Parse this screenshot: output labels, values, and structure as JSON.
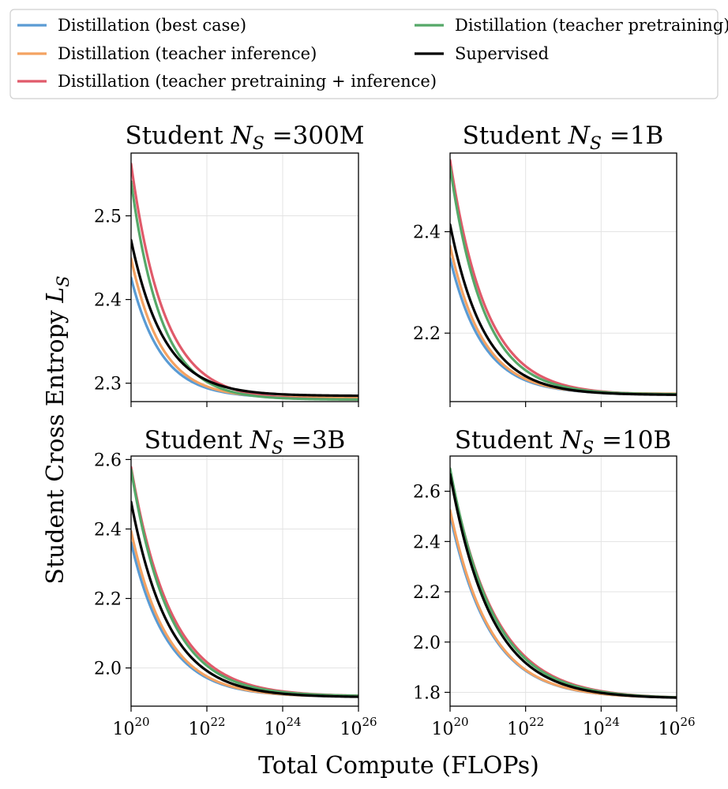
{
  "chart_data": {
    "type": "line",
    "xlabel": "Total Compute (FLOPs)",
    "ylabel": "Student Cross Entropy L_S",
    "ylabel_main": "Student Cross Entropy ",
    "ylabel_symbol": "L",
    "ylabel_sub": "S",
    "x_scale": "log10",
    "xlim": [
      1e+20,
      1e+26
    ],
    "x_ticks": [
      {
        "value": 20,
        "base": "10",
        "exp": "20"
      },
      {
        "value": 22,
        "base": "10",
        "exp": "22"
      },
      {
        "value": 24,
        "base": "10",
        "exp": "24"
      },
      {
        "value": 26,
        "base": "10",
        "exp": "26"
      }
    ],
    "grid": true,
    "legend": {
      "placement": "top",
      "entries": [
        {
          "label": "Distillation (best case)",
          "color": "#5a9bd4"
        },
        {
          "label": "Distillation (teacher inference)",
          "color": "#f4a261"
        },
        {
          "label": "Distillation (teacher pretraining + inference)",
          "color": "#e05a6a"
        },
        {
          "label": "Distillation (teacher pretraining)",
          "color": "#55a868"
        },
        {
          "label": "Supervised",
          "color": "#000000"
        }
      ]
    },
    "panels": [
      {
        "title_prefix": "Student ",
        "title_symbol": "N",
        "title_sub": "S",
        "title_suffix": " =300M",
        "ylim": [
          2.278,
          2.575
        ],
        "y_ticks": [
          "2.3",
          "2.4",
          "2.5"
        ],
        "asymptote": 2.2835,
        "series": [
          {
            "name": "Distillation (best case)",
            "start": 2.426,
            "end": 2.2825,
            "decay": 1.25
          },
          {
            "name": "Distillation (teacher inference)",
            "start": 2.449,
            "end": 2.2825,
            "decay": 1.25
          },
          {
            "name": "Distillation (teacher pretraining + inference)",
            "start": 2.562,
            "end": 2.2805,
            "decay": 1.15
          },
          {
            "name": "Distillation (teacher pretraining)",
            "start": 2.541,
            "end": 2.2805,
            "decay": 1.25
          },
          {
            "name": "Supervised",
            "start": 2.471,
            "end": 2.285,
            "decay": 1.15
          }
        ]
      },
      {
        "title_prefix": "Student ",
        "title_symbol": "N",
        "title_sub": "S",
        "title_suffix": " =1B",
        "ylim": [
          2.065,
          2.555
        ],
        "y_ticks": [
          "2.2",
          "2.4"
        ],
        "asymptote": 2.08,
        "series": [
          {
            "name": "Distillation (best case)",
            "start": 2.347,
            "end": 2.0805,
            "decay": 1.15
          },
          {
            "name": "Distillation (teacher inference)",
            "start": 2.372,
            "end": 2.0805,
            "decay": 1.15
          },
          {
            "name": "Distillation (teacher pretraining + inference)",
            "start": 2.541,
            "end": 2.079,
            "decay": 1.05
          },
          {
            "name": "Distillation (teacher pretraining)",
            "start": 2.528,
            "end": 2.0795,
            "decay": 1.12
          },
          {
            "name": "Supervised",
            "start": 2.414,
            "end": 2.0785,
            "decay": 1.1
          }
        ]
      },
      {
        "title_prefix": "Student ",
        "title_symbol": "N",
        "title_sub": "S",
        "title_suffix": " =3B",
        "ylim": [
          1.89,
          2.61
        ],
        "y_ticks": [
          "2.0",
          "2.2",
          "2.4",
          "2.6"
        ],
        "asymptote": 1.918,
        "series": [
          {
            "name": "Distillation (best case)",
            "start": 2.361,
            "end": 1.918,
            "decay": 1.05
          },
          {
            "name": "Distillation (teacher inference)",
            "start": 2.394,
            "end": 1.918,
            "decay": 1.05
          },
          {
            "name": "Distillation (teacher pretraining + inference)",
            "start": 2.578,
            "end": 1.92,
            "decay": 0.95
          },
          {
            "name": "Distillation (teacher pretraining)",
            "start": 2.571,
            "end": 1.92,
            "decay": 1.0
          },
          {
            "name": "Supervised",
            "start": 2.478,
            "end": 1.917,
            "decay": 1.0
          }
        ]
      },
      {
        "title_prefix": "Student ",
        "title_symbol": "N",
        "title_sub": "S",
        "title_suffix": " =10B",
        "ylim": [
          1.745,
          2.74
        ],
        "y_ticks": [
          "1.8",
          "2.0",
          "2.2",
          "2.4",
          "2.6"
        ],
        "asymptote": 1.78,
        "series": [
          {
            "name": "Distillation (best case)",
            "start": 2.506,
            "end": 1.78,
            "decay": 0.95
          },
          {
            "name": "Distillation (teacher inference)",
            "start": 2.525,
            "end": 1.78,
            "decay": 0.95
          },
          {
            "name": "Distillation (teacher pretraining + inference)",
            "start": 2.682,
            "end": 1.78,
            "decay": 0.85
          },
          {
            "name": "Distillation (teacher pretraining)",
            "start": 2.69,
            "end": 1.78,
            "decay": 0.88
          },
          {
            "name": "Supervised",
            "start": 2.668,
            "end": 1.779,
            "decay": 0.92
          }
        ]
      }
    ]
  }
}
